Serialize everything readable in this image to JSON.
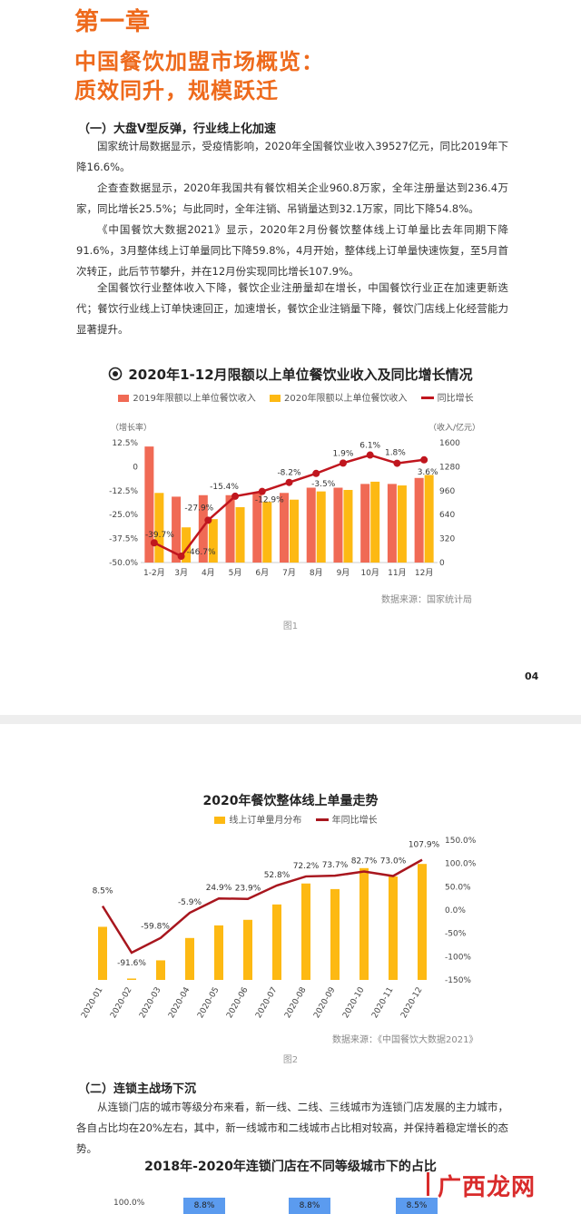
{
  "page1": {
    "chapter": "第一章",
    "title_line1": "中国餐饮加盟市场概览：",
    "title_line2": "质效同升，规模跃迁",
    "section1": "（一）大盘V型反弹，行业线上化加速",
    "paragraphs": [
      "国家统计局数据显示，受疫情影响，2020年全国餐饮业收入39527亿元，同比2019年下降16.6%。",
      "企查查数据显示，2020年我国共有餐饮相关企业960.8万家，全年注册量达到236.4万家，同比增长25.5%；与此同时，全年注销、吊销量达到32.1万家，同比下降54.8%。",
      "《中国餐饮大数据2021》显示，2020年2月份餐饮整体线上订单量比去年同期下降91.6%，3月整体线上订单量同比下降59.8%，4月开始，整体线上订单量快速恢复，至5月首次转正，此后节节攀升，并在12月份实现同比增长107.9%。",
      "全国餐饮行业整体收入下降，餐饮企业注册量却在增长，中国餐饮行业正在加速更新迭代；餐饮行业线上订单快速回正，加速增长，餐饮企业注销量下降，餐饮门店线上化经营能力显著提升。"
    ],
    "figure1_caption": "图1",
    "page_number": "04"
  },
  "page2": {
    "figure2_caption": "图2",
    "section2": "（二）连锁主战场下沉",
    "paragraph": "从连锁门店的城市等级分布来看，新一线、二线、三线城市为连锁门店发展的主力城市，各自占比均在20%左右，其中，新一线城市和二线城市占比相对较高，并保持着稳定增长的态势。",
    "chart3_title": "2018年-2020年连锁门店在不同等级城市下的占比"
  },
  "watermark": "广西龙网",
  "chart_data": [
    {
      "type": "bar",
      "title": "2020年1-12月限额以上单位餐饮业收入及同比增长情况",
      "categories": [
        "1-2月",
        "3月",
        "4月",
        "5月",
        "6月",
        "7月",
        "8月",
        "9月",
        "10月",
        "11月",
        "12月"
      ],
      "series": [
        {
          "name": "2019年限额以上单位餐饮收入",
          "values": [
            1550,
            880,
            900,
            900,
            930,
            930,
            1000,
            1000,
            1050,
            1050,
            1130
          ],
          "color": "#f06a55"
        },
        {
          "name": "2020年限额以上单位餐饮收入",
          "values": [
            930,
            470,
            580,
            740,
            810,
            840,
            950,
            970,
            1080,
            1030,
            1170
          ],
          "color": "#fdb913"
        },
        {
          "name": "同比增长",
          "type": "line",
          "values": [
            -39.7,
            -46.7,
            -27.9,
            -15.4,
            -12.9,
            -8.2,
            -3.5,
            1.9,
            6.1,
            1.8,
            3.6
          ],
          "color": "#c0161e"
        }
      ],
      "y_left_label": "增长率",
      "y_left_ticks": [
        "12.5%",
        "0",
        "-12.5%",
        "-25.0%",
        "-37.5%",
        "-50.0%"
      ],
      "y_left_range": [
        -50,
        12.5
      ],
      "y_right_label": "收入/亿元",
      "y_right_ticks": [
        "1600",
        "1280",
        "960",
        "640",
        "320",
        "0"
      ],
      "y_right_range": [
        0,
        1600
      ],
      "point_labels": [
        "-39.7%",
        "-46.7%",
        "-27.9%",
        "-15.4%",
        "-12.9%",
        "-8.2%",
        "-3.5%",
        "1.9%",
        "6.1%",
        "1.8%",
        "3.6%"
      ],
      "source": "数据来源：国家统计局",
      "legend": "top"
    },
    {
      "type": "bar",
      "title": "2020年餐饮整体线上单量走势",
      "categories": [
        "2020-01",
        "2020-02",
        "2020-03",
        "2020-04",
        "2020-05",
        "2020-06",
        "2020-07",
        "2020-08",
        "2020-09",
        "2020-10",
        "2020-11",
        "2020-12"
      ],
      "series": [
        {
          "name": "线上订单量月分布",
          "values": [
            0.38,
            0.01,
            0.14,
            0.3,
            0.39,
            0.43,
            0.54,
            0.69,
            0.65,
            0.8,
            0.74,
            0.83
          ],
          "color": "#fdb913"
        },
        {
          "name": "年同比增长",
          "type": "line",
          "values": [
            8.5,
            -91.6,
            -59.8,
            -5.9,
            24.9,
            23.9,
            52.8,
            72.2,
            73.7,
            82.7,
            73.0,
            107.9
          ],
          "color": "#a8161e"
        }
      ],
      "point_labels": [
        "8.5%",
        "-91.6%",
        "-59.8%",
        "-5.9%",
        "24.9%",
        "23.9%",
        "52.8%",
        "72.2%",
        "73.7%",
        "82.7%",
        "73.0%",
        "107.9%"
      ],
      "y_right_ticks": [
        "150.0%",
        "100.0%",
        "50.0%",
        "0.0%",
        "-50%",
        "-100%",
        "-150%"
      ],
      "y_right_range": [
        -150,
        150
      ],
      "source": "数据来源：《中国餐饮大数据2021》",
      "legend": "top"
    },
    {
      "type": "bar",
      "title": "2018年-2020年连锁门店在不同等级城市下的占比",
      "y_ticks": [
        "100.0%"
      ],
      "visible_labels": [
        "8.8%",
        "8.8%",
        "8.5%"
      ]
    }
  ]
}
